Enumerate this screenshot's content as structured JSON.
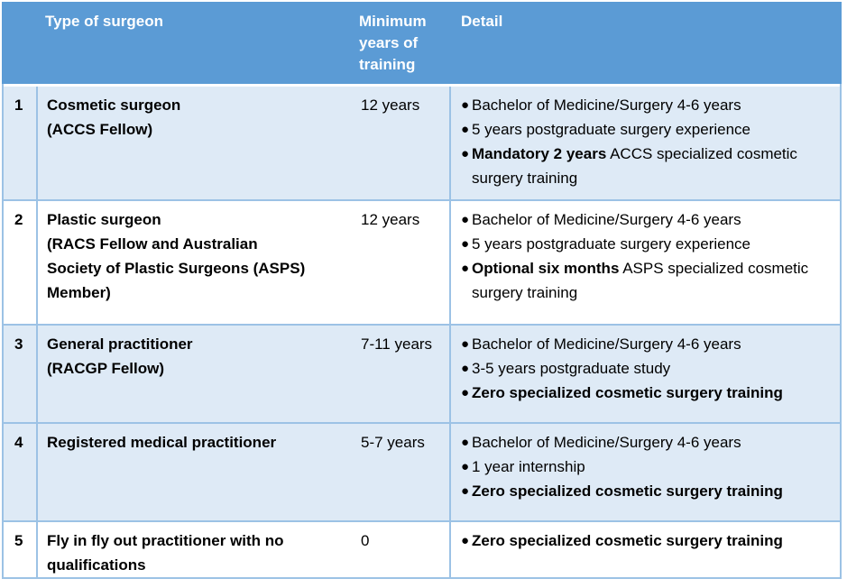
{
  "colors": {
    "header_bg": "#5B9BD5",
    "header_text": "#FFFFFF",
    "row_shaded_bg": "#DEEAF6",
    "row_plain_bg": "#FFFFFF",
    "border": "#9CC2E5",
    "body_text": "#000000",
    "bullet_glyph": "●"
  },
  "header": {
    "number_label": "",
    "type_label": "Type of surgeon",
    "years_label": "Minimum years of training",
    "detail_label": "Detail"
  },
  "rows": [
    {
      "num": "1",
      "type_lines": [
        "Cosmetic surgeon",
        "(ACCS Fellow)"
      ],
      "years": "12 years",
      "shaded": true,
      "bullets": [
        [
          {
            "text": "Bachelor of Medicine/Surgery 4-6 years",
            "bold": false
          }
        ],
        [
          {
            "text": "5 years postgraduate surgery experience",
            "bold": false
          }
        ],
        [
          {
            "text": "Mandatory 2 years",
            "bold": true
          },
          {
            "text": " ACCS specialized cosmetic surgery training",
            "bold": false
          }
        ]
      ]
    },
    {
      "num": "2",
      "type_lines": [
        "Plastic surgeon",
        "(RACS Fellow and Australian",
        "Society of Plastic Surgeons (ASPS)",
        "Member)"
      ],
      "years": "12 years",
      "shaded": false,
      "bullets": [
        [
          {
            "text": "Bachelor of Medicine/Surgery 4-6 years",
            "bold": false
          }
        ],
        [
          {
            "text": "5 years postgraduate surgery experience",
            "bold": false
          }
        ],
        [
          {
            "text": "Optional six months",
            "bold": true
          },
          {
            "text": " ASPS specialized cosmetic surgery training",
            "bold": false
          }
        ]
      ]
    },
    {
      "num": "3",
      "type_lines": [
        "General practitioner",
        "(RACGP Fellow)"
      ],
      "years": "7-11 years",
      "shaded": true,
      "bullets": [
        [
          {
            "text": "Bachelor of Medicine/Surgery 4-6 years",
            "bold": false
          }
        ],
        [
          {
            "text": "3-5 years postgraduate study",
            "bold": false
          }
        ],
        [
          {
            "text": "Zero specialized cosmetic surgery training",
            "bold": true
          }
        ]
      ]
    },
    {
      "num": "4",
      "type_lines": [
        "Registered medical practitioner"
      ],
      "years": "5-7 years",
      "shaded": true,
      "bullets": [
        [
          {
            "text": "Bachelor of Medicine/Surgery 4-6 years",
            "bold": false
          }
        ],
        [
          {
            "text": "1 year internship",
            "bold": false
          }
        ],
        [
          {
            "text": "Zero specialized cosmetic surgery training",
            "bold": true
          }
        ]
      ]
    },
    {
      "num": "5",
      "type_lines": [
        "Fly in fly out practitioner with no",
        "qualifications"
      ],
      "years": "0",
      "shaded": false,
      "bullets": [
        [
          {
            "text": "Zero specialized cosmetic surgery training",
            "bold": true
          }
        ]
      ]
    }
  ]
}
